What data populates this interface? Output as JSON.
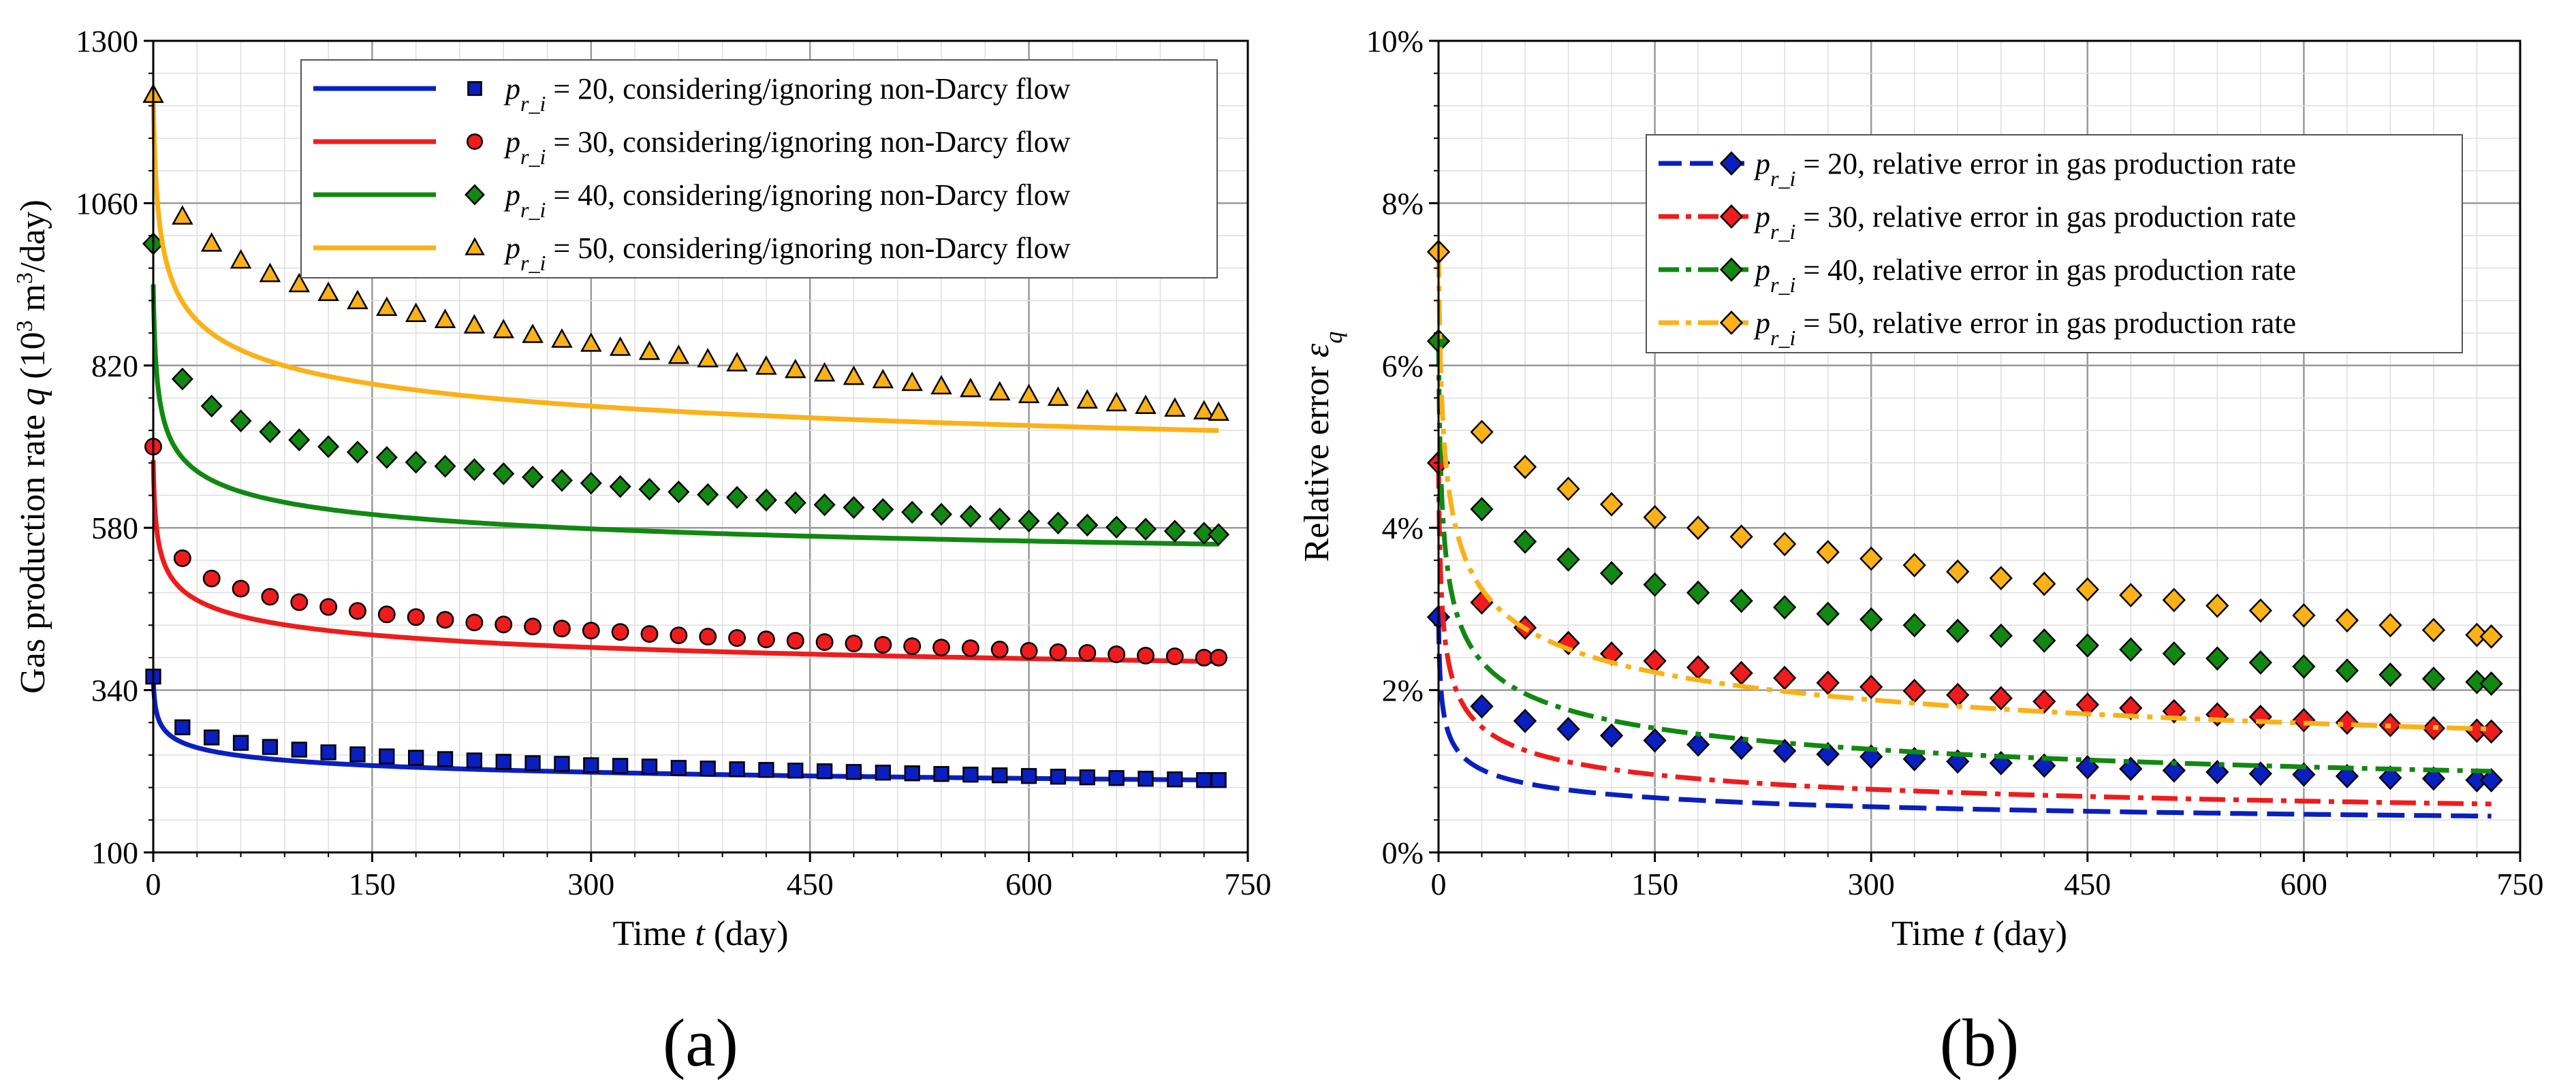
{
  "chart_data": [
    {
      "type": "line",
      "panel_label": "(a)",
      "xlabel": {
        "pre": "Time ",
        "var": "t",
        "post": " (day)"
      },
      "ylabel": {
        "pre": "Gas production rate ",
        "var": "q",
        "post_a": " (10",
        "sup1": "3",
        "post_b": " m",
        "sup2": "3",
        "post_c": "/day)"
      },
      "xlim": [
        0,
        750
      ],
      "ylim": [
        100,
        1300
      ],
      "x_ticks": [
        0,
        150,
        300,
        450,
        600,
        750
      ],
      "y_ticks": [
        100,
        340,
        580,
        820,
        1060,
        1300
      ],
      "x_tick_labels": [
        "0",
        "150",
        "300",
        "450",
        "600",
        "750"
      ],
      "y_tick_labels": [
        "100",
        "340",
        "580",
        "820",
        "1060",
        "1300"
      ],
      "grid": true,
      "legend": {
        "placement": "top-right",
        "label_prefix": "p",
        "label_sub": "r_i",
        "label_eq": " = "
      },
      "legend_suffix": ", considering/ignoring non-Darcy flow",
      "series": [
        {
          "name": "20",
          "color": "#0a1fbf",
          "marker": "square",
          "line": {
            "q0": 360,
            "q1": 200,
            "a": 0.4,
            "p": 0.078
          },
          "marker_points": {
            "x": [
              0,
              20,
              40,
              60,
              80,
              100,
              120,
              140,
              160,
              180,
              200,
              220,
              240,
              260,
              280,
              300,
              320,
              340,
              360,
              380,
              400,
              420,
              440,
              460,
              480,
              500,
              520,
              540,
              560,
              580,
              600,
              620,
              640,
              660,
              680,
              700,
              720,
              730
            ],
            "y": [
              360,
              285,
              270,
              262,
              256,
              252,
              248,
              245,
              242,
              240,
              238,
              236,
              234,
              232,
              231,
              229,
              228,
              227,
              225,
              224,
              223,
              222,
              221,
              220,
              219,
              218,
              217,
              216,
              215,
              214,
              213,
              212,
              211,
              210,
              209,
              208,
              207,
              207
            ]
          }
        },
        {
          "name": "30",
          "color": "#ee1c1c",
          "marker": "circle",
          "line": {
            "q0": 680,
            "q1": 440,
            "a": 0.55,
            "p": 0.101
          },
          "marker_points": {
            "x": [
              0,
              20,
              40,
              60,
              80,
              100,
              120,
              140,
              160,
              180,
              200,
              220,
              240,
              260,
              280,
              300,
              320,
              340,
              360,
              380,
              400,
              420,
              440,
              460,
              480,
              500,
              520,
              540,
              560,
              580,
              600,
              620,
              640,
              660,
              680,
              700,
              720,
              730
            ],
            "y": [
              700,
              535,
              505,
              490,
              478,
              470,
              463,
              457,
              452,
              448,
              444,
              440,
              437,
              434,
              431,
              428,
              426,
              423,
              421,
              419,
              417,
              415,
              413,
              411,
              409,
              407,
              405,
              403,
              402,
              400,
              398,
              396,
              395,
              393,
              391,
              390,
              388,
              388
            ]
          }
        },
        {
          "name": "40",
          "color": "#118811",
          "marker": "diamond",
          "line": {
            "q0": 940,
            "q1": 670,
            "a": 0.8,
            "p": 0.145
          },
          "marker_points": {
            "x": [
              0,
              20,
              40,
              60,
              80,
              100,
              120,
              140,
              160,
              180,
              200,
              220,
              240,
              260,
              280,
              300,
              320,
              340,
              360,
              380,
              400,
              420,
              440,
              460,
              480,
              500,
              520,
              540,
              560,
              580,
              600,
              620,
              640,
              660,
              680,
              700,
              720,
              730
            ],
            "y": [
              1000,
              800,
              760,
              738,
              722,
              710,
              700,
              692,
              684,
              677,
              671,
              666,
              660,
              655,
              650,
              646,
              641,
              637,
              633,
              629,
              625,
              621,
              617,
              614,
              610,
              607,
              603,
              600,
              597,
              593,
              590,
              587,
              584,
              581,
              578,
              575,
              572,
              570
            ]
          }
        },
        {
          "name": "50",
          "color": "#fbb117",
          "marker": "triangle",
          "line": {
            "q0": 1220,
            "q1": 870,
            "a": 1.0,
            "p": 0.12
          },
          "marker_points": {
            "x": [
              0,
              20,
              40,
              60,
              80,
              100,
              120,
              140,
              160,
              180,
              200,
              220,
              240,
              260,
              280,
              300,
              320,
              340,
              360,
              380,
              400,
              420,
              440,
              460,
              480,
              500,
              520,
              540,
              560,
              580,
              600,
              620,
              640,
              660,
              680,
              700,
              720,
              730
            ],
            "y": [
              1220,
              1040,
              1000,
              975,
              955,
              940,
              927,
              915,
              905,
              896,
              887,
              879,
              872,
              865,
              858,
              852,
              846,
              840,
              834,
              829,
              823,
              818,
              813,
              808,
              803,
              798,
              794,
              789,
              785,
              780,
              776,
              772,
              768,
              764,
              760,
              756,
              752,
              750
            ]
          }
        }
      ]
    },
    {
      "type": "line",
      "panel_label": "(b)",
      "xlabel": {
        "pre": "Time ",
        "var": "t",
        "post": " (day)"
      },
      "ylabel": {
        "pre": "Relative error ",
        "var": "ε",
        "sub": "q"
      },
      "xlim": [
        0,
        750
      ],
      "ylim": [
        0,
        10
      ],
      "x_ticks": [
        0,
        150,
        300,
        450,
        600,
        750
      ],
      "y_ticks": [
        0,
        2,
        4,
        6,
        8,
        10
      ],
      "x_tick_labels": [
        "0",
        "150",
        "300",
        "450",
        "600",
        "750"
      ],
      "y_tick_labels": [
        "0%",
        "2%",
        "4%",
        "6%",
        "8%",
        "10%"
      ],
      "grid": true,
      "legend": {
        "placement": "top-right",
        "label_prefix": "p",
        "label_sub": "r_i",
        "label_eq": " = "
      },
      "legend_suffix": ", relative error in gas production rate",
      "series": [
        {
          "name": "20",
          "color": "#0a1fbf",
          "dash": "dash",
          "marker": "diamond",
          "line": {
            "e0": 2.9,
            "e1": 1.65,
            "a": 0.55,
            "p": 0.26
          },
          "marker_points": {
            "x": [
              0,
              30,
              60,
              90,
              120,
              150,
              180,
              210,
              240,
              270,
              300,
              330,
              360,
              390,
              420,
              450,
              480,
              510,
              540,
              570,
              600,
              630,
              660,
              690,
              720,
              730
            ],
            "y": [
              2.9,
              1.8,
              1.62,
              1.52,
              1.44,
              1.38,
              1.33,
              1.29,
              1.25,
              1.21,
              1.18,
              1.15,
              1.12,
              1.1,
              1.07,
              1.05,
              1.03,
              1.01,
              0.99,
              0.97,
              0.96,
              0.94,
              0.92,
              0.91,
              0.89,
              0.89
            ]
          }
        },
        {
          "name": "30",
          "color": "#ee1c1c",
          "dash": "dashdot",
          "marker": "diamond",
          "line": {
            "e0": 4.8,
            "e1": 2.85,
            "a": 0.7,
            "p": 0.3
          },
          "marker_points": {
            "x": [
              0,
              30,
              60,
              90,
              120,
              150,
              180,
              210,
              240,
              270,
              300,
              330,
              360,
              390,
              420,
              450,
              480,
              510,
              540,
              570,
              600,
              630,
              660,
              690,
              720,
              730
            ],
            "y": [
              4.8,
              3.08,
              2.77,
              2.58,
              2.45,
              2.36,
              2.28,
              2.21,
              2.15,
              2.09,
              2.04,
              1.99,
              1.94,
              1.9,
              1.86,
              1.82,
              1.78,
              1.74,
              1.7,
              1.67,
              1.63,
              1.6,
              1.57,
              1.53,
              1.5,
              1.49
            ]
          }
        },
        {
          "name": "40",
          "color": "#118811",
          "dash": "dashdot",
          "marker": "diamond",
          "line": {
            "e0": 6.3,
            "e1": 3.95,
            "a": 0.8,
            "p": 0.27
          },
          "marker_points": {
            "x": [
              0,
              30,
              60,
              90,
              120,
              150,
              180,
              210,
              240,
              270,
              300,
              330,
              360,
              390,
              420,
              450,
              480,
              510,
              540,
              570,
              600,
              630,
              660,
              690,
              720,
              730
            ],
            "y": [
              6.3,
              4.23,
              3.83,
              3.61,
              3.44,
              3.3,
              3.2,
              3.1,
              3.02,
              2.94,
              2.87,
              2.8,
              2.73,
              2.67,
              2.61,
              2.55,
              2.5,
              2.45,
              2.39,
              2.34,
              2.29,
              2.24,
              2.19,
              2.14,
              2.1,
              2.08
            ]
          }
        },
        {
          "name": "50",
          "color": "#fbb117",
          "dash": "dashdot",
          "marker": "diamond",
          "line": {
            "e0": 7.4,
            "e1": 4.95,
            "a": 1.0,
            "p": 0.24
          },
          "marker_points": {
            "x": [
              0,
              30,
              60,
              90,
              120,
              150,
              180,
              210,
              240,
              270,
              300,
              330,
              360,
              390,
              420,
              450,
              480,
              510,
              540,
              570,
              600,
              630,
              660,
              690,
              720,
              730
            ],
            "y": [
              7.4,
              5.18,
              4.75,
              4.48,
              4.29,
              4.13,
              4.0,
              3.89,
              3.8,
              3.7,
              3.62,
              3.54,
              3.46,
              3.38,
              3.31,
              3.24,
              3.17,
              3.11,
              3.04,
              2.98,
              2.92,
              2.86,
              2.8,
              2.74,
              2.68,
              2.66
            ]
          }
        }
      ]
    }
  ]
}
